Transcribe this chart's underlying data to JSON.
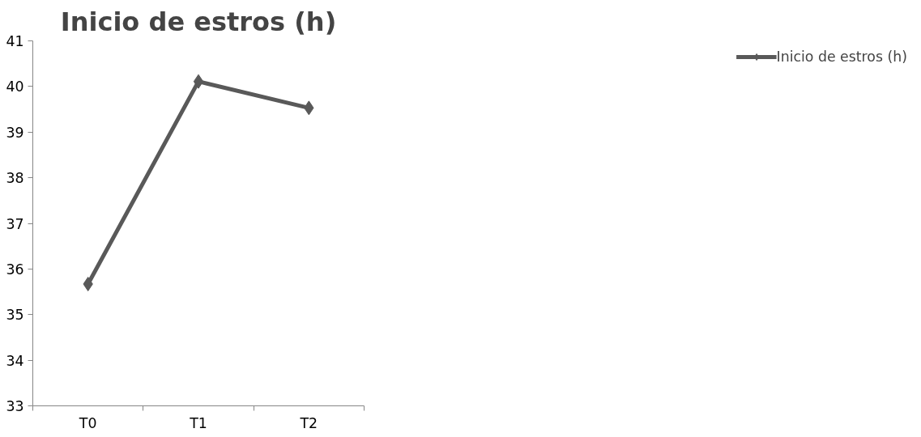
{
  "chart_data": {
    "type": "line",
    "title": "Inicio de estros (h)",
    "categories": [
      "T0",
      "T1",
      "T2"
    ],
    "series": [
      {
        "name": "Inicio de estros (h)",
        "color": "#595959",
        "values": [
          35.67,
          40.11,
          39.53
        ]
      }
    ],
    "ylim": [
      33,
      41
    ],
    "yticks": [
      33,
      34,
      35,
      36,
      37,
      38,
      39,
      40,
      41
    ],
    "legend": "right",
    "marker": "diamond",
    "line_style": "solid",
    "grid": false
  }
}
